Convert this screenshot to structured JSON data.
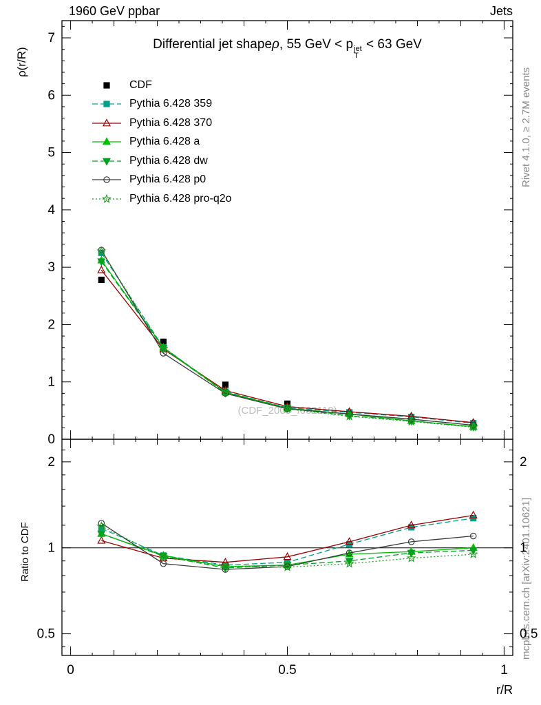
{
  "header": {
    "left": "1960 GeV ppbar",
    "right": "Jets"
  },
  "side_notes": {
    "rivet": "Rivet 4.1.0, ≥ 2.7M events",
    "mcplots": "mcplots.cern.ch [arXiv:2401.10621]"
  },
  "watermark": "(CDF_2005_I662118)",
  "chart_data": {
    "type": "line",
    "title": {
      "part1": "Differential jet shape",
      "rho": "ρ",
      "part2": ", 55 GeV < p",
      "sup": "jet",
      "sub": "T",
      "part3": " < 63 GeV"
    },
    "xlabel": "r/R",
    "ylabel_main": "ρ(r/R)",
    "ylabel_ratio": "Ratio to CDF",
    "xlim": [
      -0.02,
      1.02
    ],
    "ylim_main": [
      0,
      7.3
    ],
    "ylim_ratio": [
      0.42,
      2.4
    ],
    "ratio_scale": "log",
    "xticks": [
      0,
      0.5,
      1
    ],
    "xtick_labels": [
      "0",
      "0.5",
      "1"
    ],
    "yticks_main": [
      0,
      1,
      2,
      3,
      4,
      5,
      6,
      7
    ],
    "yticks_ratio": [
      0.5,
      1,
      2
    ],
    "ytick_ratio_labels": [
      "0.5",
      "1",
      "2"
    ],
    "ratio_minor_ticks": [
      0.45,
      0.6,
      0.7,
      0.8,
      0.9,
      1.2,
      1.4,
      1.6,
      1.8,
      2.2
    ],
    "reference_line_ratio": 1,
    "x": [
      0.071,
      0.214,
      0.357,
      0.5,
      0.643,
      0.786,
      0.929
    ],
    "series": [
      {
        "label": "CDF",
        "color": "#000000",
        "marker": "square",
        "marker_filled": true,
        "line": "none",
        "values": [
          2.78,
          1.7,
          0.95,
          0.62,
          0.46,
          0.33,
          0.22
        ]
      },
      {
        "label": "Pythia 6.428 359",
        "color": "#00a08c",
        "marker": "square",
        "marker_filled": true,
        "line": "dashed",
        "values": [
          3.25,
          1.6,
          0.83,
          0.55,
          0.47,
          0.39,
          0.28
        ],
        "ratio": [
          1.17,
          0.94,
          0.87,
          0.89,
          1.03,
          1.18,
          1.27
        ]
      },
      {
        "label": "Pythia 6.428 370",
        "color": "#9c0000",
        "marker": "triangle-up",
        "marker_filled": false,
        "line": "solid",
        "values": [
          2.95,
          1.57,
          0.85,
          0.57,
          0.48,
          0.4,
          0.29
        ],
        "ratio": [
          1.06,
          0.92,
          0.89,
          0.93,
          1.05,
          1.2,
          1.3
        ]
      },
      {
        "label": "Pythia 6.428 a",
        "color": "#00c000",
        "marker": "triangle-up",
        "marker_filled": true,
        "line": "solid",
        "values": [
          3.12,
          1.6,
          0.82,
          0.54,
          0.44,
          0.32,
          0.22
        ],
        "ratio": [
          1.12,
          0.94,
          0.86,
          0.87,
          0.95,
          0.97,
          1.0
        ]
      },
      {
        "label": "Pythia 6.428 dw",
        "color": "#00a020",
        "marker": "triangle-down",
        "marker_filled": true,
        "line": "dashed",
        "values": [
          3.1,
          1.59,
          0.81,
          0.54,
          0.41,
          0.32,
          0.215
        ],
        "ratio": [
          1.12,
          0.935,
          0.85,
          0.87,
          0.9,
          0.96,
          0.98
        ]
      },
      {
        "label": "Pythia 6.428 p0",
        "color": "#3a3a3a",
        "marker": "circle",
        "marker_filled": false,
        "line": "solid",
        "values": [
          3.3,
          1.5,
          0.8,
          0.53,
          0.44,
          0.35,
          0.245
        ],
        "ratio": [
          1.22,
          0.88,
          0.84,
          0.86,
          0.96,
          1.05,
          1.1
        ]
      },
      {
        "label": "Pythia 6.428 pro-q2o",
        "color": "#1e9e1e",
        "marker": "star",
        "marker_filled": false,
        "line": "dotted",
        "values": [
          3.28,
          1.58,
          0.82,
          0.53,
          0.4,
          0.31,
          0.21
        ],
        "ratio": [
          1.19,
          0.93,
          0.86,
          0.855,
          0.88,
          0.92,
          0.95
        ]
      }
    ]
  }
}
